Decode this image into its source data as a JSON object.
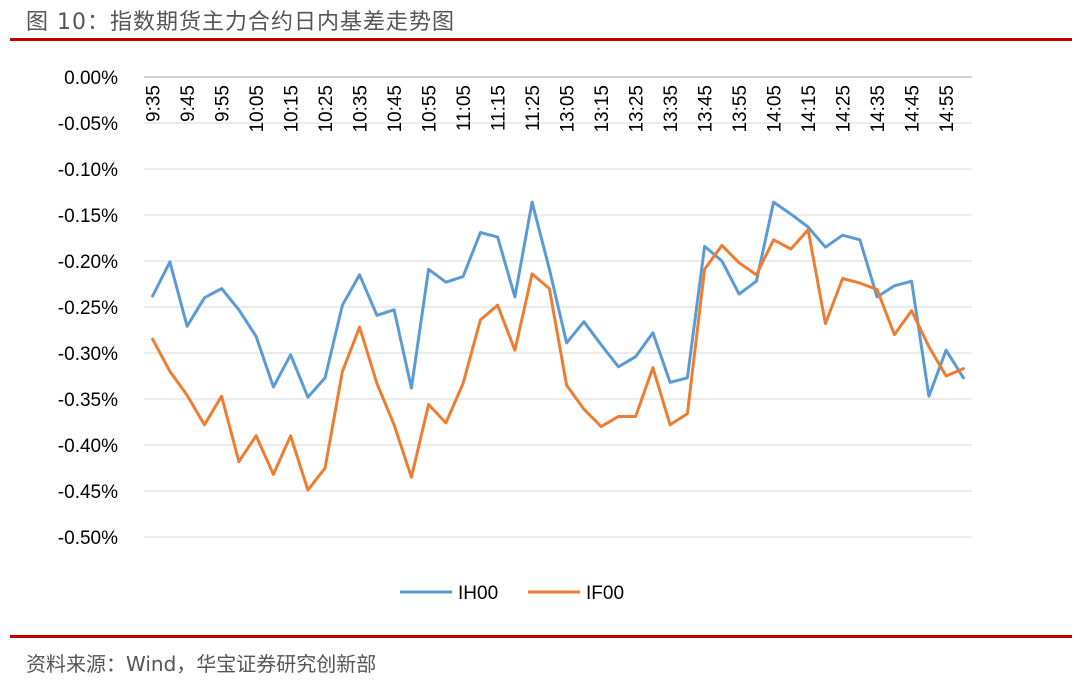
{
  "header": {
    "title": "图 10：指数期货主力合约日内基差走势图"
  },
  "footer": {
    "source": "资料来源：Wind，华宝证券研究创新部"
  },
  "colors": {
    "rule": "#c00000",
    "IH00": "#5b9bd5",
    "IF00": "#ed7d31",
    "grid": "#d9d9d9",
    "axis_text": "#000000"
  },
  "chart_data": {
    "type": "line",
    "title": "",
    "xlabel": "",
    "ylabel": "",
    "grid": true,
    "legend": "bottom",
    "ylim": [
      -0.5,
      0.0
    ],
    "y_ticks": [
      0.0,
      -0.05,
      -0.1,
      -0.15,
      -0.2,
      -0.25,
      -0.3,
      -0.35,
      -0.4,
      -0.45,
      -0.5
    ],
    "y_tick_labels": [
      "0.00%",
      "-0.05%",
      "-0.10%",
      "-0.15%",
      "-0.20%",
      "-0.25%",
      "-0.30%",
      "-0.35%",
      "-0.40%",
      "-0.45%",
      "-0.50%"
    ],
    "x_tick_labels": [
      "9:35",
      "9:45",
      "9:55",
      "10:05",
      "10:15",
      "10:25",
      "10:35",
      "10:45",
      "10:55",
      "11:05",
      "11:15",
      "11:25",
      "13:05",
      "13:15",
      "13:25",
      "13:35",
      "13:45",
      "13:55",
      "14:05",
      "14:15",
      "14:25",
      "14:35",
      "14:45",
      "14:55"
    ],
    "x": [
      "9:35",
      "9:40",
      "9:45",
      "9:50",
      "9:55",
      "10:00",
      "10:05",
      "10:10",
      "10:15",
      "10:20",
      "10:25",
      "10:30",
      "10:35",
      "10:40",
      "10:45",
      "10:50",
      "10:55",
      "11:00",
      "11:05",
      "11:10",
      "11:15",
      "11:20",
      "11:25",
      "11:30",
      "13:05",
      "13:10",
      "13:15",
      "13:20",
      "13:25",
      "13:30",
      "13:35",
      "13:40",
      "13:45",
      "13:50",
      "13:55",
      "14:00",
      "14:05",
      "14:10",
      "14:15",
      "14:20",
      "14:25",
      "14:30",
      "14:35",
      "14:40",
      "14:45",
      "14:50",
      "14:55",
      "15:00"
    ],
    "series": [
      {
        "name": "IH00",
        "values": [
          -0.238,
          -0.201,
          -0.271,
          -0.24,
          -0.23,
          -0.253,
          -0.282,
          -0.337,
          -0.302,
          -0.348,
          -0.327,
          -0.248,
          -0.215,
          -0.259,
          -0.253,
          -0.338,
          -0.209,
          -0.223,
          -0.217,
          -0.169,
          -0.174,
          -0.239,
          -0.136,
          -0.209,
          -0.289,
          -0.266,
          -0.291,
          -0.315,
          -0.304,
          -0.278,
          -0.332,
          -0.327,
          -0.184,
          -0.2,
          -0.236,
          -0.222,
          -0.136,
          -0.149,
          -0.163,
          -0.185,
          -0.172,
          -0.177,
          -0.239,
          -0.227,
          -0.222,
          -0.347,
          -0.297,
          -0.327
        ]
      },
      {
        "name": "IF00",
        "values": [
          -0.285,
          -0.32,
          -0.346,
          -0.378,
          -0.347,
          -0.418,
          -0.39,
          -0.432,
          -0.39,
          -0.449,
          -0.425,
          -0.32,
          -0.272,
          -0.333,
          -0.378,
          -0.435,
          -0.356,
          -0.376,
          -0.333,
          -0.264,
          -0.248,
          -0.297,
          -0.214,
          -0.23,
          -0.335,
          -0.361,
          -0.38,
          -0.369,
          -0.369,
          -0.316,
          -0.378,
          -0.366,
          -0.209,
          -0.183,
          -0.202,
          -0.215,
          -0.177,
          -0.187,
          -0.166,
          -0.268,
          -0.219,
          -0.224,
          -0.231,
          -0.28,
          -0.254,
          -0.293,
          -0.325,
          -0.317
        ]
      }
    ]
  }
}
